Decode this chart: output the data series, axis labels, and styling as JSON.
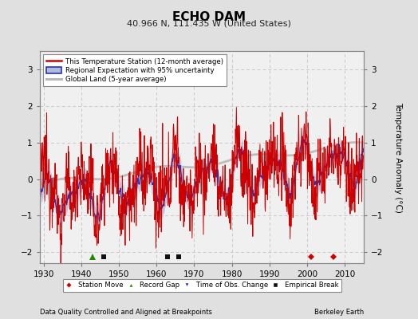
{
  "title": "ECHO DAM",
  "subtitle": "40.966 N, 111.435 W (United States)",
  "ylabel": "Temperature Anomaly (°C)",
  "xlabel_left": "Data Quality Controlled and Aligned at Breakpoints",
  "xlabel_right": "Berkeley Earth",
  "ylim": [
    -2.3,
    3.5
  ],
  "yticks": [
    -2,
    -1,
    0,
    1,
    2,
    3
  ],
  "xlim": [
    1929,
    2015
  ],
  "xticks": [
    1930,
    1940,
    1950,
    1960,
    1970,
    1980,
    1990,
    2000,
    2010
  ],
  "bg_color": "#e0e0e0",
  "plot_bg_color": "#f0f0f0",
  "grid_color": "#c8c8c8",
  "red_color": "#cc0000",
  "blue_color": "#2233bb",
  "blue_band_color": "#b0bbdd",
  "gray_color": "#b8b8b8",
  "station_move_years": [
    2001,
    2007
  ],
  "record_gap_years": [
    1943
  ],
  "obs_change_years": [],
  "empirical_break_years": [
    1946,
    1963,
    1966
  ],
  "marker_y": -2.12,
  "legend_labels": [
    "This Temperature Station (12-month average)",
    "Regional Expectation with 95% uncertainty",
    "Global Land (5-year average)"
  ],
  "bottom_legend_labels": [
    "Station Move",
    "Record Gap",
    "Time of Obs. Change",
    "Empirical Break"
  ]
}
